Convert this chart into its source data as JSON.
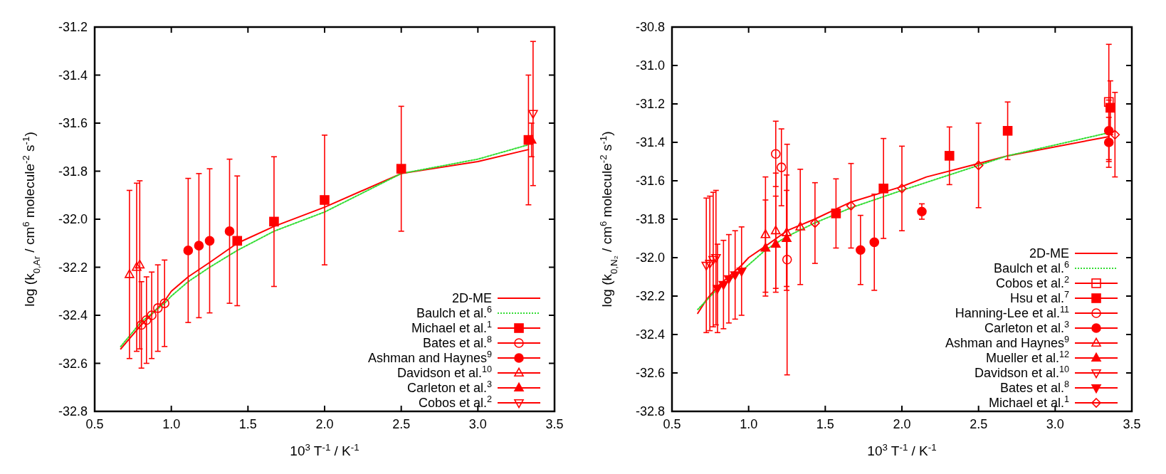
{
  "chart_data": [
    {
      "type": "scatter",
      "xlabel": "10$^{3}$ T$^{-1}$ / K$^{-1}$",
      "ylabel": "log (k$_{0,Ar}$ / cm$^{6}$ molecule$^{-2}$ s$^{-1}$)",
      "xlim": [
        0.5,
        3.5
      ],
      "ylim": [
        -32.8,
        -31.2
      ],
      "xticks": [
        0.5,
        {
          "value": 1,
          "label": "1.0"
        },
        1.5,
        {
          "value": 2,
          "label": "2.0"
        },
        2.5,
        {
          "value": 3,
          "label": "3.0"
        },
        3.5
      ],
      "yticks": [
        {
          "value": -32.8,
          "label": "-32.8"
        },
        -32.6,
        -32.4,
        -32.2,
        {
          "value": -32,
          "label": "-32.0"
        },
        -31.8,
        -31.6,
        -31.4,
        -31.2
      ],
      "grid": false,
      "legend": "bottom right",
      "series": [
        {
          "name": "2D-ME",
          "type": "line",
          "color": "#ff0000",
          "line_style": "solid",
          "marker": "none",
          "x": [
            0.67,
            0.79,
            0.956,
            1.0,
            1.11,
            1.25,
            1.43,
            1.67,
            2.0,
            2.5,
            3.0,
            3.33
          ],
          "values": [
            -32.54,
            -32.45,
            -32.34,
            -32.3,
            -32.24,
            -32.18,
            -32.1,
            -32.03,
            -31.95,
            -31.81,
            -31.76,
            -31.71
          ]
        },
        {
          "name": "Baulch et al.$^{6}$",
          "type": "line",
          "color": "#33dd33",
          "line_style": "dotted",
          "marker": "none",
          "x": [
            0.67,
            0.8,
            0.956,
            1.0,
            1.11,
            1.25,
            1.43,
            1.67,
            2.0,
            2.5,
            3.0,
            3.33
          ],
          "values": [
            -32.53,
            -32.43,
            -32.35,
            -32.32,
            -32.26,
            -32.2,
            -32.13,
            -32.05,
            -31.97,
            -31.81,
            -31.75,
            -31.69
          ]
        },
        {
          "name": "Michael et al.$^{1}$",
          "type": "scatter",
          "color": "#ff0000",
          "marker": "square",
          "x": [
            1.43,
            1.67,
            2.0,
            2.5,
            3.33
          ],
          "values": [
            -32.09,
            -32.01,
            -31.92,
            -31.79,
            -31.67
          ],
          "errors": [
            0.27,
            0.27,
            0.27,
            0.26,
            0.27
          ]
        },
        {
          "name": "Bates et al.$^{8}$",
          "type": "scatter",
          "color": "#ff0000",
          "marker": "circle-open",
          "x": [
            0.805,
            0.838,
            0.872,
            0.912,
            0.956
          ],
          "values": [
            -32.44,
            -32.42,
            -32.4,
            -32.37,
            -32.35
          ],
          "errors": [
            0.18,
            0.18,
            0.18,
            0.18,
            0.18
          ]
        },
        {
          "name": "Ashman and Haynes$^{9}$",
          "type": "scatter",
          "color": "#ff0000",
          "marker": "circle",
          "x": [
            1.11,
            1.18,
            1.25,
            1.38
          ],
          "values": [
            -32.13,
            -32.11,
            -32.09,
            -32.05
          ],
          "errors": [
            0.3,
            0.3,
            0.3,
            0.3
          ]
        },
        {
          "name": "Davidson et al.$^{10}$",
          "type": "scatter",
          "color": "#ff0000",
          "marker": "triangle-open",
          "x": [
            0.727,
            0.774,
            0.794
          ],
          "values": [
            -32.23,
            -32.2,
            -32.19
          ],
          "errors": [
            0.35,
            0.35,
            0.35
          ]
        },
        {
          "name": "Carleton et al.$^{3}$",
          "type": "scatter",
          "color": "#ff0000",
          "marker": "triangle",
          "x": [
            3.35
          ],
          "values": [
            -31.67
          ],
          "errors": [
            0.07
          ]
        },
        {
          "name": "Cobos et al.$^{2}$",
          "type": "scatter",
          "color": "#ff0000",
          "marker": "triangle-down-open",
          "x": [
            3.36
          ],
          "values": [
            -31.56
          ],
          "errors": [
            0.3
          ]
        }
      ]
    },
    {
      "type": "scatter",
      "xlabel": "10$^{3}$ T$^{-1}$ / K$^{-1}$",
      "ylabel": "log (k$_{0,N₂}$ / cm$^{6}$ molecule$^{-2}$ s$^{-1}$)",
      "xlim": [
        0.5,
        3.5
      ],
      "ylim": [
        -32.8,
        -30.8
      ],
      "xticks": [
        0.5,
        {
          "value": 1,
          "label": "1.0"
        },
        1.5,
        {
          "value": 2,
          "label": "2.0"
        },
        2.5,
        {
          "value": 3,
          "label": "3.0"
        },
        3.5
      ],
      "yticks": [
        {
          "value": -32.8,
          "label": "-32.8"
        },
        -32.6,
        -32.4,
        -32.2,
        {
          "value": -32,
          "label": "-32.0"
        },
        -31.8,
        -31.6,
        -31.4,
        -31.2,
        {
          "value": -31,
          "label": "-31.0"
        },
        -30.8
      ],
      "grid": false,
      "legend": "bottom right",
      "series": [
        {
          "name": "2D-ME",
          "type": "line",
          "color": "#ff0000",
          "line_style": "solid",
          "marker": "none",
          "x": [
            0.668,
            0.724,
            0.797,
            0.954,
            1.0,
            1.11,
            1.25,
            1.43,
            1.67,
            2.0,
            2.16,
            2.5,
            2.69,
            3.35
          ],
          "values": [
            -32.29,
            -32.22,
            -32.15,
            -32.04,
            -32.0,
            -31.94,
            -31.86,
            -31.8,
            -31.71,
            -31.63,
            -31.58,
            -31.51,
            -31.47,
            -31.37
          ]
        },
        {
          "name": "Baulch et al.$^{6}$",
          "type": "line",
          "color": "#33dd33",
          "line_style": "dotted",
          "marker": "none",
          "x": [
            0.668,
            0.8,
            0.954,
            1.11,
            1.25,
            1.43,
            1.67,
            2.0,
            2.5,
            2.69,
            3.35
          ],
          "values": [
            -32.27,
            -32.16,
            -32.07,
            -31.96,
            -31.89,
            -31.82,
            -31.74,
            -31.65,
            -31.52,
            -31.47,
            -31.35
          ]
        },
        {
          "name": "Cobos et al.$^{2}$",
          "type": "scatter",
          "color": "#ff0000",
          "marker": "square-open",
          "x": [
            3.35
          ],
          "values": [
            -31.19
          ],
          "errors": [
            0.3
          ]
        },
        {
          "name": "Hsu et al.$^{7}$",
          "type": "scatter",
          "color": "#ff0000",
          "marker": "square",
          "x": [
            1.57,
            1.88,
            2.31,
            2.69,
            3.36
          ],
          "values": [
            -31.77,
            -31.64,
            -31.47,
            -31.34,
            -31.22
          ],
          "errors": [
            0.18,
            0.26,
            0.15,
            0.15,
            0.14
          ]
        },
        {
          "name": "Hanning-Lee et al.$^{11}$",
          "type": "scatter",
          "color": "#ff0000",
          "marker": "circle-open",
          "x": [
            1.177,
            1.214,
            1.251
          ],
          "values": [
            -31.46,
            -31.53,
            -32.01
          ],
          "errors": [
            0.17,
            0.2,
            0.6
          ]
        },
        {
          "name": "Carleton et al.$^{3}$",
          "type": "scatter",
          "color": "#ff0000",
          "marker": "circle",
          "x": [
            1.73,
            1.82,
            2.13,
            3.35,
            3.35
          ],
          "values": [
            -31.96,
            -31.92,
            -31.76,
            -31.34,
            -31.4
          ],
          "errors": [
            0.18,
            0.25,
            0.04,
            0.16,
            0.13
          ]
        },
        {
          "name": "Ashman and Haynes$^{9}$",
          "type": "scatter",
          "color": "#ff0000",
          "marker": "triangle-open",
          "x": [
            1.11,
            1.177,
            1.248,
            1.337
          ],
          "values": [
            -31.88,
            -31.86,
            -31.87,
            -31.84
          ],
          "errors": [
            0.3,
            0.3,
            0.3,
            0.3
          ]
        },
        {
          "name": "Mueller et al.$^{12}$",
          "type": "scatter",
          "color": "#ff0000",
          "marker": "triangle",
          "x": [
            1.11,
            1.177,
            1.248
          ],
          "values": [
            -31.95,
            -31.93,
            -31.9
          ],
          "errors": [
            0.25,
            0.25,
            0.25
          ]
        },
        {
          "name": "Davidson et al.$^{10}$",
          "type": "scatter",
          "color": "#ff0000",
          "marker": "triangle-down-open",
          "x": [
            0.724,
            0.747,
            0.769,
            0.787
          ],
          "values": [
            -32.04,
            -32.03,
            -32.01,
            -32.0
          ],
          "errors": [
            0.35,
            0.35,
            0.35,
            0.35
          ]
        },
        {
          "name": "Bates et al.$^{8}$",
          "type": "scatter",
          "color": "#ff0000",
          "marker": "triangle-down",
          "x": [
            0.797,
            0.836,
            0.871,
            0.912,
            0.954
          ],
          "values": [
            -32.16,
            -32.14,
            -32.11,
            -32.09,
            -32.07
          ],
          "errors": [
            0.23,
            0.23,
            0.23,
            0.23,
            0.23
          ]
        },
        {
          "name": "Michael et al.$^{1}$",
          "type": "scatter",
          "color": "#ff0000",
          "marker": "diamond-open",
          "x": [
            1.433,
            1.668,
            2.0,
            2.5,
            3.39
          ],
          "values": [
            -31.82,
            -31.73,
            -31.64,
            -31.52,
            -31.36
          ],
          "errors": [
            0.21,
            0.22,
            0.22,
            0.22,
            0.22
          ]
        }
      ]
    }
  ]
}
